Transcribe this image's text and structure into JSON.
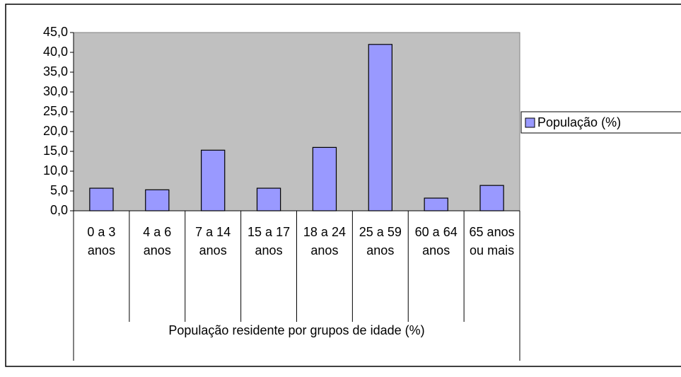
{
  "chart_data": {
    "type": "bar",
    "categories": [
      "0 a 3 anos",
      "4 a 6 anos",
      "7 a 14 anos",
      "15 a 17 anos",
      "18 a 24 anos",
      "25 a 59 anos",
      "60 a 64 anos",
      "65 anos ou mais"
    ],
    "series": [
      {
        "name": "População (%)",
        "color": "#9999ff",
        "values": [
          5.7,
          5.3,
          15.3,
          5.7,
          16.0,
          42.0,
          3.2,
          6.4
        ]
      }
    ],
    "xlabel": "População residente por grupos de idade (%)",
    "ylim": [
      0,
      45
    ],
    "yticks": [
      {
        "value": 0,
        "label": "0,0"
      },
      {
        "value": 5,
        "label": "5,0"
      },
      {
        "value": 10,
        "label": "10,0"
      },
      {
        "value": 15,
        "label": "15,0"
      },
      {
        "value": 20,
        "label": "20,0"
      },
      {
        "value": 25,
        "label": "25,0"
      },
      {
        "value": 30,
        "label": "30,0"
      },
      {
        "value": 35,
        "label": "35,0"
      },
      {
        "value": 40,
        "label": "40,0"
      },
      {
        "value": 45,
        "label": "45,0"
      }
    ],
    "plot_background": "#c0c0c0",
    "legend": "right"
  }
}
